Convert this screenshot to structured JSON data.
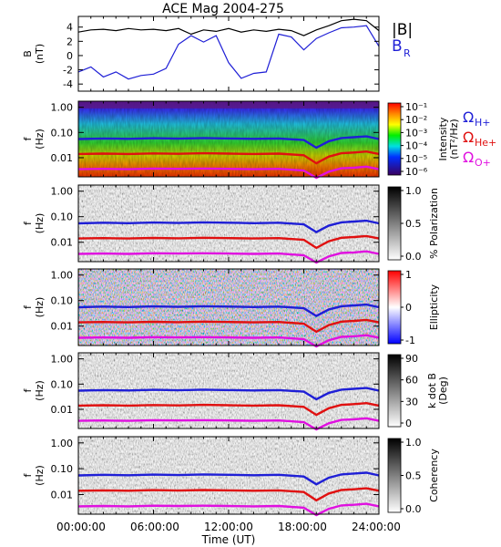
{
  "chart_data": {
    "type": "line",
    "title": "ACE Mag 2004-275",
    "xlabel": "Time (UT)",
    "x_ticks": [
      "00:00:00",
      "06:00:00",
      "12:00:00",
      "18:00:00",
      "24:00:00"
    ],
    "xlim_hours": [
      0,
      24
    ],
    "panels": [
      {
        "kind": "line",
        "ylabel_top": "B",
        "ylabel_bottom": "(nT)",
        "ylim": [
          -5,
          5.5
        ],
        "y_ticks": [
          "4",
          "2",
          "0",
          "-2",
          "-4"
        ],
        "legend": [
          {
            "label": "|B|",
            "color": "#000000"
          },
          {
            "label": "B",
            "sub": "R",
            "color": "#1f1fd6"
          }
        ],
        "series": [
          {
            "name": "|B|",
            "color": "#000000",
            "x": [
              0,
              1,
              2,
              3,
              4,
              5,
              6,
              7,
              8,
              9,
              10,
              11,
              12,
              13,
              14,
              15,
              16,
              17,
              18,
              19,
              20,
              21,
              22,
              23,
              24
            ],
            "values": [
              3.3,
              3.6,
              3.7,
              3.5,
              3.8,
              3.6,
              3.7,
              3.5,
              3.8,
              3.0,
              3.6,
              3.4,
              3.8,
              3.3,
              3.6,
              3.4,
              3.7,
              3.5,
              2.8,
              3.6,
              4.2,
              4.9,
              5.1,
              4.9,
              3.5
            ]
          },
          {
            "name": "B_R",
            "color": "#1f1fd6",
            "x": [
              0,
              1,
              2,
              3,
              4,
              5,
              6,
              7,
              8,
              9,
              10,
              11,
              12,
              13,
              14,
              15,
              16,
              17,
              18,
              19,
              20,
              21,
              22,
              23,
              24
            ],
            "values": [
              -2.3,
              -1.6,
              -3.0,
              -2.3,
              -3.3,
              -2.8,
              -2.6,
              -1.8,
              1.6,
              2.8,
              1.9,
              2.8,
              -1.0,
              -3.2,
              -2.5,
              -2.3,
              3.0,
              2.6,
              0.8,
              2.4,
              3.2,
              3.9,
              4.0,
              4.2,
              1.3
            ]
          }
        ]
      },
      {
        "kind": "spectrogram",
        "ylabel_top": "f",
        "ylabel_bottom": "(Hz)",
        "y_ticks": [
          "1.00",
          "0.10",
          "0.01"
        ],
        "colorbar_type": "rainbow",
        "colorbar_label": [
          "Intensity",
          "(nT²/Hz)"
        ],
        "colorbar_ticks": [
          "10⁻¹",
          "10⁻²",
          "10⁻³",
          "10⁻⁴",
          "10⁻⁵",
          "10⁻⁶"
        ],
        "gyro_legend": [
          {
            "label": "Ω",
            "sub": "H+",
            "color": "#1f1fd6"
          },
          {
            "label": "Ω",
            "sub": "He+",
            "color": "#e01010"
          },
          {
            "label": "Ω",
            "sub": "O+",
            "color": "#e010e0"
          }
        ]
      },
      {
        "kind": "spectrogram",
        "ylabel_top": "f",
        "ylabel_bottom": "(Hz)",
        "y_ticks": [
          "1.00",
          "0.10",
          "0.01"
        ],
        "colorbar_type": "gray",
        "colorbar_label": [
          "% Polarization"
        ],
        "colorbar_ticks": [
          "1.0",
          "0.5",
          "0.0"
        ]
      },
      {
        "kind": "spectrogram",
        "ylabel_top": "f",
        "ylabel_bottom": "(Hz)",
        "y_ticks": [
          "1.00",
          "0.10",
          "0.01"
        ],
        "colorbar_type": "bwr",
        "colorbar_label": [
          "Ellipticity"
        ],
        "colorbar_ticks": [
          "1",
          "0",
          "-1"
        ]
      },
      {
        "kind": "spectrogram",
        "ylabel_top": "f",
        "ylabel_bottom": "(Hz)",
        "y_ticks": [
          "1.00",
          "0.10",
          "0.01"
        ],
        "colorbar_type": "gray",
        "colorbar_label": [
          "k dot B",
          "(Deg)"
        ],
        "colorbar_ticks": [
          "90",
          "60",
          "30",
          "0"
        ]
      },
      {
        "kind": "spectrogram",
        "ylabel_top": "f",
        "ylabel_bottom": "(Hz)",
        "y_ticks": [
          "1.00",
          "0.10",
          "0.01"
        ],
        "colorbar_type": "gray",
        "colorbar_label": [
          "Coherency"
        ],
        "colorbar_ticks": [
          "1.0",
          "0.5",
          "0.0"
        ]
      }
    ],
    "gyrofrequency_lines_hz": {
      "x": [
        0,
        2,
        4,
        6,
        8,
        10,
        12,
        14,
        16,
        18,
        19,
        20,
        21,
        22,
        23,
        24
      ],
      "H+": [
        0.055,
        0.058,
        0.056,
        0.059,
        0.057,
        0.06,
        0.058,
        0.056,
        0.058,
        0.05,
        0.025,
        0.045,
        0.06,
        0.065,
        0.07,
        0.055
      ],
      "He+": [
        0.014,
        0.0145,
        0.014,
        0.0148,
        0.0143,
        0.015,
        0.0145,
        0.014,
        0.0145,
        0.0125,
        0.006,
        0.011,
        0.015,
        0.016,
        0.0175,
        0.014
      ],
      "O+": [
        0.0035,
        0.0036,
        0.0035,
        0.0037,
        0.0036,
        0.0037,
        0.0036,
        0.0035,
        0.0036,
        0.0031,
        0.0016,
        0.0028,
        0.0038,
        0.004,
        0.0044,
        0.0035
      ]
    }
  }
}
